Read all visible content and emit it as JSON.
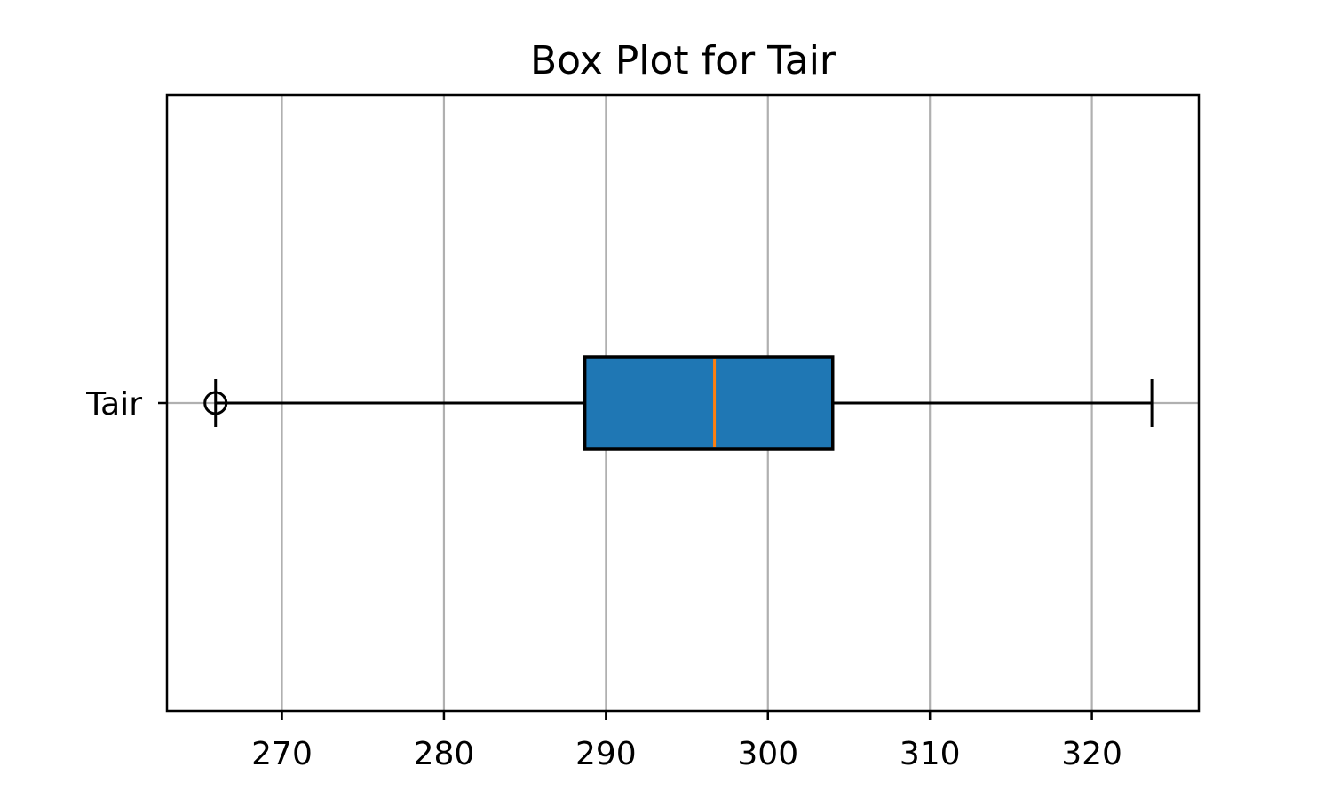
{
  "chart_data": {
    "type": "box",
    "title": "Box Plot for Tair",
    "orientation": "horizontal",
    "xlabel": "",
    "ylabel": "",
    "xlim": [
      262.9,
      326.6
    ],
    "xticks": [
      270,
      280,
      290,
      300,
      310,
      320
    ],
    "xtick_labels": [
      "270",
      "280",
      "290",
      "300",
      "310",
      "320"
    ],
    "grid": true,
    "series": [
      {
        "name": "Tair",
        "whisker_low": 265.9,
        "q1": 288.7,
        "median": 296.7,
        "q3": 304.0,
        "whisker_high": 323.7,
        "fliers": [
          265.9
        ]
      }
    ],
    "colors": {
      "box_fill": "#1f77b4",
      "median": "#ff7f0e",
      "grid": "#b0b0b0"
    }
  }
}
